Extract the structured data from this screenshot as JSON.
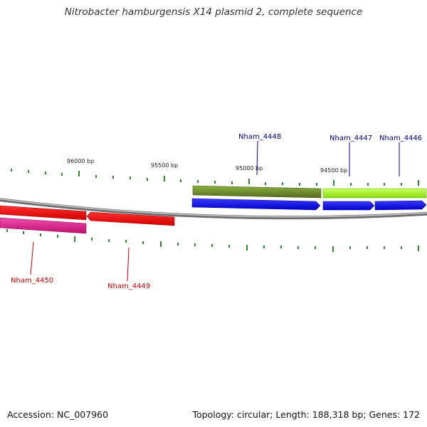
{
  "title": "Nitrobacter hamburgensis X14 plasmid 2, complete sequence",
  "accession": "Accession: NC_007960",
  "summary": "Topology: circular; Length: 188,318 bp; Genes: 172",
  "colors": {
    "backbone": "#8a8a8a",
    "tick": "#2a8a2a",
    "forward_cds": "#0000ee",
    "reverse_cds": "#ee0000",
    "reverse_misc": "#e0208c",
    "forward_misc_dark": "#6b8e23",
    "forward_misc_light": "#9aee22",
    "label_forward": "#00008b",
    "label_reverse": "#cc0000"
  },
  "scale": {
    "labels": [
      "96000 bp",
      "95500 bp",
      "95000 bp",
      "94500 bp"
    ]
  },
  "gene_labels": {
    "forward": [
      "Nham_4448",
      "Nham_4447",
      "Nham_4446"
    ],
    "reverse": [
      "Nham_4450",
      "Nham_4449"
    ]
  }
}
